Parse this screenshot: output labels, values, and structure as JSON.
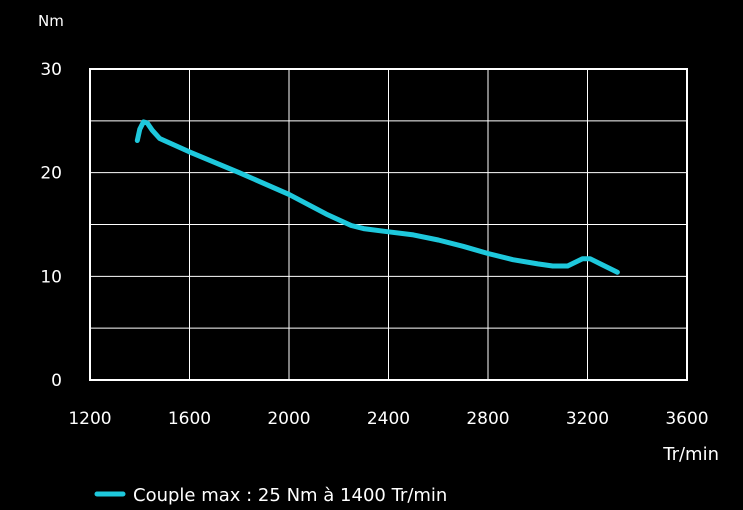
{
  "chart_data": {
    "type": "line",
    "y_unit": "Nm",
    "x_unit": "Tr/min",
    "xlim": [
      1200,
      3600
    ],
    "ylim": [
      0,
      30
    ],
    "x_ticks": [
      "1200",
      "1600",
      "2000",
      "2400",
      "2800",
      "3200",
      "3600"
    ],
    "y_ticks": [
      "0",
      "10",
      "20",
      "30"
    ],
    "grid": true,
    "legend_position": "bottom-left",
    "series": [
      {
        "name": "Couple max : 25 Nm à 1400 Tr/min",
        "color": "#1ec8dc",
        "points": [
          [
            1390,
            23.1
          ],
          [
            1400,
            24.2
          ],
          [
            1415,
            24.9
          ],
          [
            1430,
            24.8
          ],
          [
            1450,
            24.1
          ],
          [
            1480,
            23.3
          ],
          [
            1600,
            22.0
          ],
          [
            1800,
            20.0
          ],
          [
            2000,
            17.9
          ],
          [
            2150,
            16.0
          ],
          [
            2250,
            14.9
          ],
          [
            2300,
            14.6
          ],
          [
            2400,
            14.3
          ],
          [
            2500,
            14.0
          ],
          [
            2600,
            13.5
          ],
          [
            2700,
            12.9
          ],
          [
            2800,
            12.2
          ],
          [
            2900,
            11.6
          ],
          [
            3000,
            11.2
          ],
          [
            3060,
            11.0
          ],
          [
            3120,
            11.0
          ],
          [
            3180,
            11.7
          ],
          [
            3210,
            11.7
          ],
          [
            3260,
            11.1
          ],
          [
            3320,
            10.4
          ]
        ]
      }
    ]
  }
}
